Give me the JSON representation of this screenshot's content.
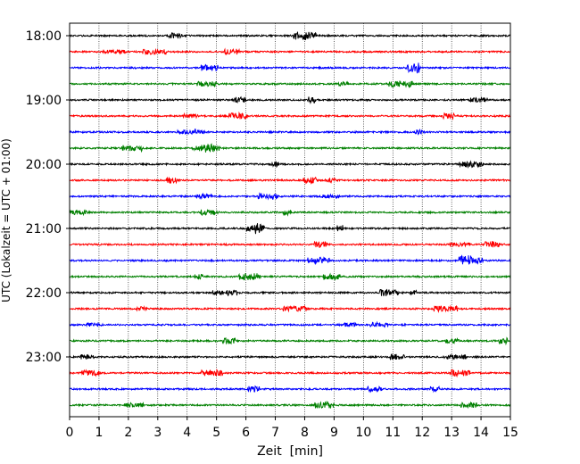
{
  "chart_data": {
    "type": "line",
    "title": "",
    "xlabel": "Zeit  [min]",
    "ylabel": "UTC (Lokalzeit = UTC + 01:00)",
    "xlim": [
      0,
      15
    ],
    "x_ticks": [
      "0",
      "1",
      "2",
      "3",
      "4",
      "5",
      "6",
      "7",
      "8",
      "9",
      "10",
      "11",
      "12",
      "13",
      "14",
      "15"
    ],
    "y_tick_labels": [
      "18:00",
      "19:00",
      "20:00",
      "21:00",
      "22:00",
      "23:00"
    ],
    "vertical_grid": true,
    "trace_interval_minutes": 15,
    "trace_start": "18:00",
    "trace_count": 24,
    "colors_cycle": [
      "#000000",
      "#ff0000",
      "#0000ff",
      "#008000"
    ]
  }
}
